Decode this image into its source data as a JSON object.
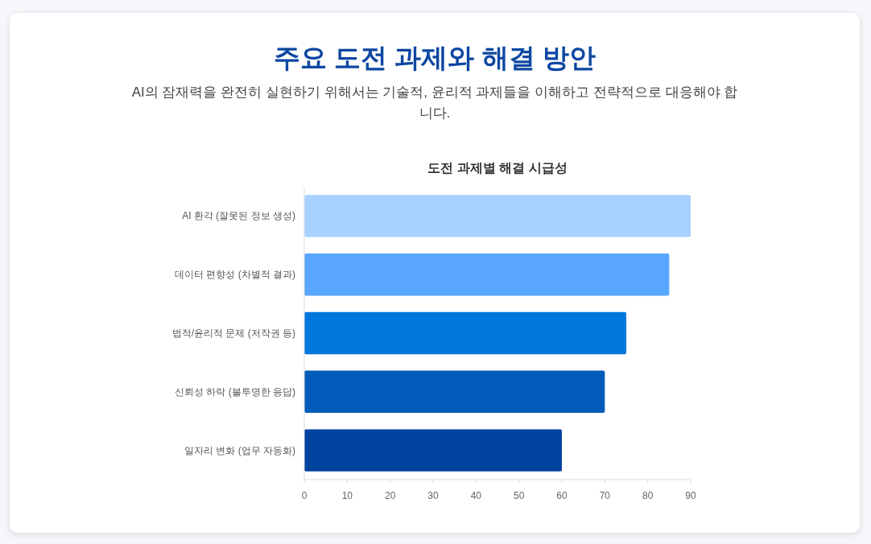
{
  "chart_data": {
    "type": "bar",
    "orientation": "horizontal",
    "title": "주요 도전 과제와 해결 방안",
    "subtitle": "AI의 잠재력을 완전히 실현하기 위해서는 기술적, 윤리적 과제들을 이해하고 전략적으로 대응해야 합니다.",
    "annotations": [
      "도전 과제별 해결 시급성"
    ],
    "categories": [
      "AI 환각 (잘못된 정보 생성)",
      "데이터 편향성 (차별적 결과)",
      "법적/윤리적 문제 (저작권 등)",
      "신뢰성 하락 (불투명한 응답)",
      "일자리 변화 (업무 자동화)"
    ],
    "values": [
      90,
      85,
      75,
      70,
      60
    ],
    "colors": [
      "#a8d1ff",
      "#58a6ff",
      "#0077dd",
      "#005cb8",
      "#0044a0"
    ],
    "xlim": [
      0,
      90
    ],
    "xticks": [
      0,
      10,
      20,
      30,
      40,
      50,
      60,
      70,
      80,
      90
    ]
  }
}
